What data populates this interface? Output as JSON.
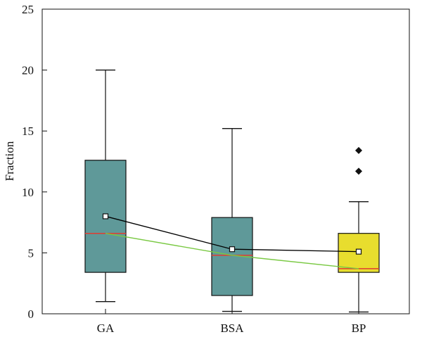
{
  "chart_data": {
    "type": "box",
    "ylabel": "Fraction",
    "xlabel": "",
    "ylim": [
      0,
      25
    ],
    "yticks": [
      0,
      5,
      10,
      15,
      20,
      25
    ],
    "categories": [
      "GA",
      "BSA",
      "BP"
    ],
    "boxes": [
      {
        "category": "GA",
        "whisker_low": 1.0,
        "q1": 3.4,
        "median": 6.6,
        "q3": 12.6,
        "whisker_high": 20.0,
        "mean": 8.0,
        "outliers": [],
        "fill": "#5f9999"
      },
      {
        "category": "BSA",
        "whisker_low": 0.2,
        "q1": 1.5,
        "median": 4.8,
        "q3": 7.9,
        "whisker_high": 15.2,
        "mean": 5.3,
        "outliers": [],
        "fill": "#5f9999"
      },
      {
        "category": "BP",
        "whisker_low": 0.15,
        "q1": 3.4,
        "median": 3.7,
        "q3": 6.6,
        "whisker_high": 9.2,
        "mean": 5.1,
        "outliers": [
          11.7,
          13.4
        ],
        "fill": "#e8dd2e"
      }
    ],
    "mean_line_color": "#000000",
    "median_line_color": "#7ac943",
    "median_mark_color": "#e03c31",
    "grid": false,
    "legend": "none"
  }
}
